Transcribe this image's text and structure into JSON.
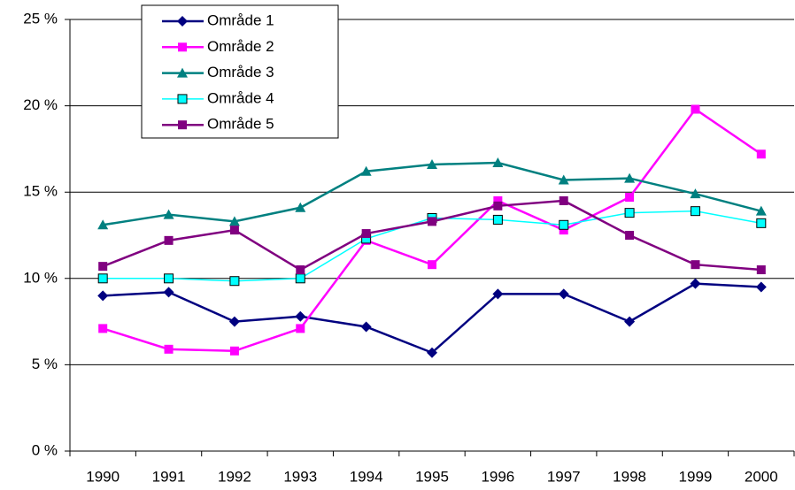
{
  "chart_data": {
    "type": "line",
    "categories": [
      "1990",
      "1991",
      "1992",
      "1993",
      "1994",
      "1995",
      "1996",
      "1997",
      "1998",
      "1999",
      "2000"
    ],
    "series": [
      {
        "name": "Område 1",
        "color": "#000080",
        "marker": "diamond",
        "values": [
          9.0,
          9.2,
          7.5,
          7.8,
          7.2,
          5.7,
          9.1,
          9.1,
          7.5,
          9.7,
          9.5
        ]
      },
      {
        "name": "Område 2",
        "color": "#ff00ff",
        "marker": "square",
        "values": [
          7.1,
          5.9,
          5.8,
          7.1,
          12.2,
          10.8,
          14.5,
          12.8,
          14.7,
          19.8,
          17.2
        ]
      },
      {
        "name": "Område 3",
        "color": "#008080",
        "marker": "triangle",
        "values": [
          13.1,
          13.7,
          13.3,
          14.1,
          16.2,
          16.6,
          16.7,
          15.7,
          15.8,
          14.9,
          13.9
        ]
      },
      {
        "name": "Område 4",
        "color": "#00ffff",
        "marker": "square-outline",
        "values": [
          10.0,
          10.0,
          9.85,
          10.0,
          12.3,
          13.5,
          13.4,
          13.1,
          13.8,
          13.9,
          13.2
        ]
      },
      {
        "name": "Område 5",
        "color": "#800080",
        "marker": "square",
        "values": [
          10.7,
          12.2,
          12.8,
          10.5,
          12.6,
          13.3,
          14.2,
          14.5,
          12.5,
          10.8,
          10.5
        ]
      }
    ],
    "ylim": [
      0,
      25
    ],
    "yticks": [
      {
        "value": 0,
        "label": "0 %"
      },
      {
        "value": 5,
        "label": "5 %"
      },
      {
        "value": 10,
        "label": "10 %"
      },
      {
        "value": 15,
        "label": "15 %"
      },
      {
        "value": 20,
        "label": "20 %"
      },
      {
        "value": 25,
        "label": "25 %"
      }
    ],
    "grid": true,
    "legend": "top-left"
  }
}
